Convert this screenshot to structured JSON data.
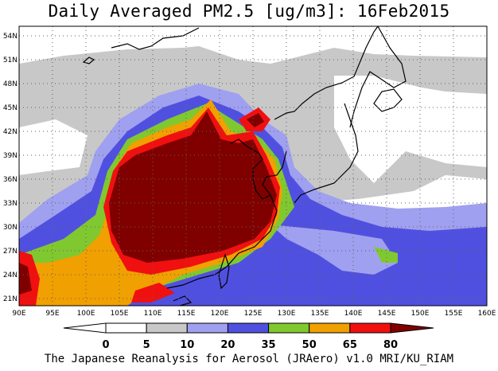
{
  "title": "Daily Averaged PM2.5 [ug/m3]: 16Feb2015",
  "footer": "The Japanese Reanalysis for Aerosol (JRAero) v1.0 MRI/KU_RIAM",
  "lon_ticks": [
    "90E",
    "95E",
    "100E",
    "105E",
    "110E",
    "115E",
    "120E",
    "125E",
    "130E",
    "135E",
    "140E",
    "145E",
    "150E",
    "155E",
    "160E"
  ],
  "lat_ticks": [
    "21N",
    "24N",
    "27N",
    "30N",
    "33N",
    "36N",
    "39N",
    "42N",
    "45N",
    "48N",
    "51N",
    "54N"
  ],
  "colorbar": {
    "labels": [
      "0",
      "5",
      "10",
      "20",
      "35",
      "50",
      "65",
      "80"
    ],
    "colors": [
      "#ffffff",
      "#c8c8c8",
      "#a0a0f0",
      "#5050e0",
      "#80c830",
      "#f0a000",
      "#f01010",
      "#800000"
    ]
  }
}
